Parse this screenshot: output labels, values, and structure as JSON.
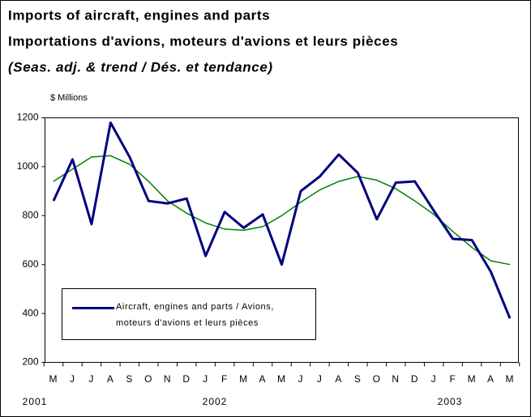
{
  "chart_data": {
    "type": "line",
    "title": "Imports of aircraft, engines and parts",
    "subtitle": "Importations d'avions, moteurs d'avions et leurs pièces",
    "note": "(Seas. adj. & trend / Dés. et tendance)",
    "y_label": "$ Millions",
    "categories": [
      "M",
      "J",
      "J",
      "A",
      "S",
      "O",
      "N",
      "D",
      "J",
      "F",
      "M",
      "A",
      "M",
      "J",
      "J",
      "A",
      "S",
      "O",
      "N",
      "D",
      "J",
      "F",
      "M",
      "A",
      "M"
    ],
    "years": [
      "2001",
      "2002",
      "2003"
    ],
    "series": [
      {
        "name": "Aircraft, engines and parts / Avions, moteurs d'avions et leurs pièces",
        "color": "#000080",
        "values": [
          860,
          1030,
          765,
          1180,
          1040,
          860,
          850,
          870,
          635,
          815,
          750,
          805,
          600,
          900,
          960,
          1050,
          975,
          785,
          935,
          940,
          820,
          705,
          700,
          570,
          380
        ]
      },
      {
        "color": "#008000",
        "values": [
          940,
          990,
          1040,
          1045,
          1010,
          940,
          860,
          810,
          770,
          745,
          740,
          755,
          800,
          855,
          905,
          940,
          960,
          945,
          910,
          860,
          805,
          735,
          670,
          615,
          600
        ]
      }
    ],
    "ylim": [
      200,
      1200
    ],
    "yticks": [
      200,
      400,
      600,
      800,
      1000,
      1200
    ],
    "legend": "lower left"
  }
}
